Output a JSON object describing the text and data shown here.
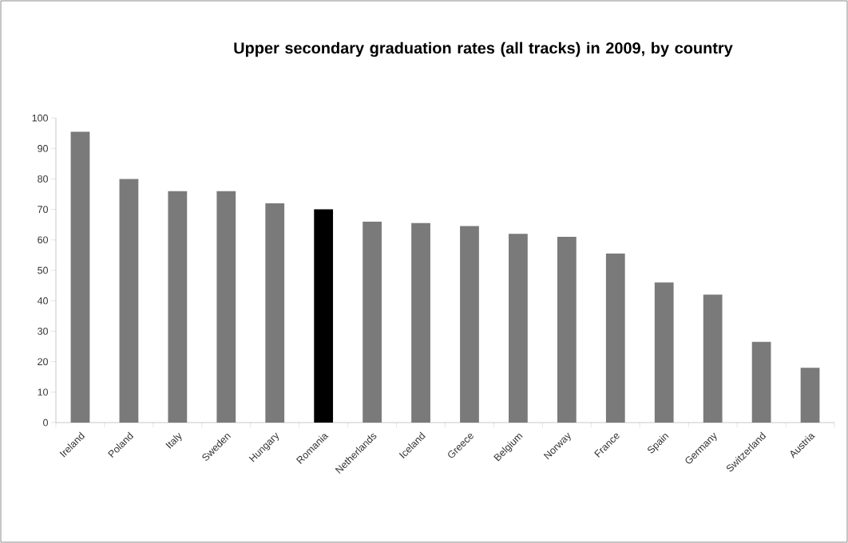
{
  "chart_data": {
    "type": "bar",
    "title": "Upper secondary graduation rates (all tracks) in 2009, by country",
    "categories": [
      "Ireland",
      "Poland",
      "Italy",
      "Sweden",
      "Hungary",
      "Romania",
      "Netherlands",
      "Iceland",
      "Greece",
      "Belgium",
      "Norway",
      "France",
      "Spain",
      "Germany",
      "Switzerland",
      "Austria"
    ],
    "values": [
      95.5,
      80,
      76,
      76,
      72,
      70,
      66,
      65.5,
      64.5,
      62,
      61,
      55.5,
      46,
      42,
      26.5,
      18
    ],
    "colors": [
      "#7a7a7a",
      "#7a7a7a",
      "#7a7a7a",
      "#7a7a7a",
      "#7a7a7a",
      "#000000",
      "#7a7a7a",
      "#7a7a7a",
      "#7a7a7a",
      "#7a7a7a",
      "#7a7a7a",
      "#7a7a7a",
      "#7a7a7a",
      "#7a7a7a",
      "#7a7a7a",
      "#7a7a7a"
    ],
    "ylim": [
      0,
      100
    ],
    "yticks": [
      0,
      10,
      20,
      30,
      40,
      50,
      60,
      70,
      80,
      90,
      100
    ],
    "grid": false
  }
}
